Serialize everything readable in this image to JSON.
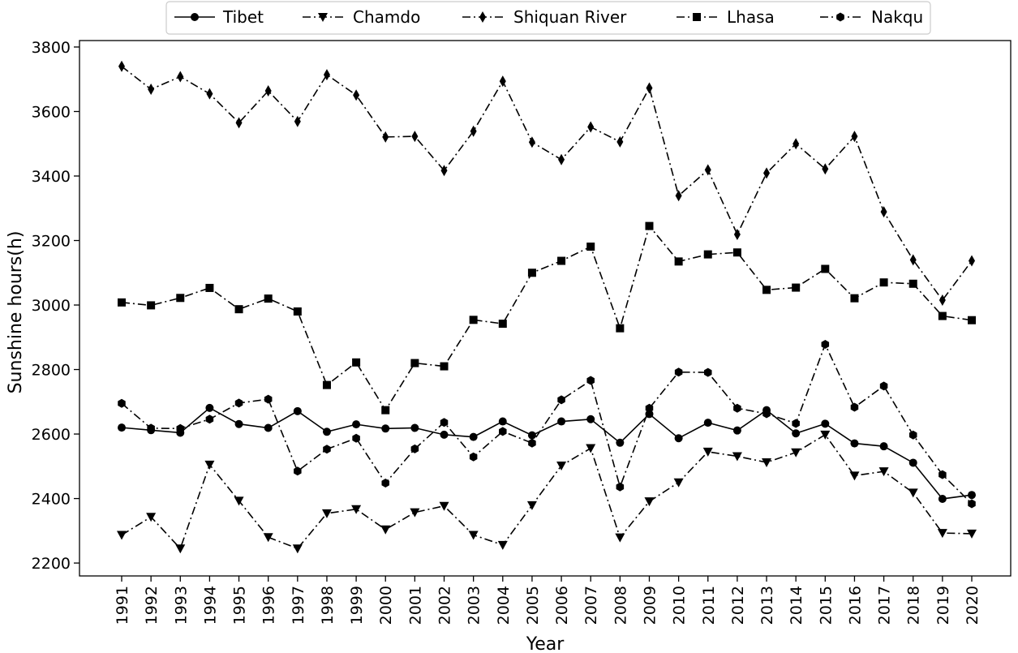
{
  "chart_data": {
    "type": "line",
    "title": "",
    "xlabel": "Year",
    "ylabel": "Sunshine hours(h)",
    "ylim": [
      2160,
      3820
    ],
    "yticks": [
      2200,
      2400,
      2600,
      2800,
      3000,
      3200,
      3400,
      3600,
      3800
    ],
    "ytick_labels": [
      "2200",
      "2400",
      "2600",
      "2800",
      "3000",
      "3200",
      "3400",
      "3600",
      "3800"
    ],
    "legend_position": "top-center",
    "grid": false,
    "x": [
      "1991",
      "1992",
      "1993",
      "1994",
      "1995",
      "1996",
      "1997",
      "1998",
      "1999",
      "2000",
      "2001",
      "2002",
      "2003",
      "2004",
      "2005",
      "2006",
      "2007",
      "2008",
      "2009",
      "2010",
      "2011",
      "2012",
      "2013",
      "2014",
      "2015",
      "2016",
      "2017",
      "2018",
      "2019",
      "2020"
    ],
    "series": [
      {
        "name": "Tibet",
        "marker": "circle",
        "linestyle": "solid",
        "values": [
          2620,
          2612,
          2604,
          2681,
          2631,
          2619,
          2671,
          2607,
          2630,
          2617,
          2619,
          2598,
          2591,
          2639,
          2596,
          2639,
          2646,
          2573,
          2662,
          2587,
          2635,
          2611,
          2674,
          2602,
          2632,
          2571,
          2562,
          2511,
          2399,
          2411
        ]
      },
      {
        "name": "Chamdo",
        "marker": "triangle-down",
        "linestyle": "dashdot",
        "values": [
          2287,
          2343,
          2245,
          2505,
          2393,
          2280,
          2245,
          2354,
          2367,
          2304,
          2357,
          2377,
          2287,
          2256,
          2379,
          2502,
          2556,
          2279,
          2391,
          2450,
          2545,
          2531,
          2512,
          2543,
          2598,
          2471,
          2484,
          2418,
          2293,
          2291
        ]
      },
      {
        "name": "Shiquan River",
        "marker": "thin-diamond",
        "linestyle": "dashdot",
        "values": [
          3740,
          3669,
          3708,
          3655,
          3565,
          3664,
          3569,
          3714,
          3651,
          3521,
          3523,
          3417,
          3539,
          3694,
          3505,
          3451,
          3552,
          3506,
          3673,
          3339,
          3419,
          3219,
          3409,
          3500,
          3422,
          3523,
          3289,
          3140,
          3015,
          3137
        ]
      },
      {
        "name": "Lhasa",
        "marker": "square",
        "linestyle": "dashdot",
        "values": [
          3008,
          2999,
          3022,
          3053,
          2987,
          3020,
          2980,
          2752,
          2822,
          2674,
          2820,
          2810,
          2954,
          2942,
          3100,
          3137,
          3181,
          2928,
          3245,
          3135,
          3157,
          3163,
          3047,
          3054,
          3112,
          3021,
          3070,
          3066,
          2966,
          2953
        ]
      },
      {
        "name": "Nakqu",
        "marker": "hexagon",
        "linestyle": "dashdot",
        "values": [
          2695,
          2618,
          2617,
          2646,
          2696,
          2708,
          2485,
          2553,
          2587,
          2448,
          2554,
          2636,
          2529,
          2608,
          2572,
          2706,
          2766,
          2436,
          2680,
          2792,
          2791,
          2680,
          2663,
          2633,
          2878,
          2683,
          2749,
          2597,
          2474,
          2384
        ]
      }
    ]
  }
}
